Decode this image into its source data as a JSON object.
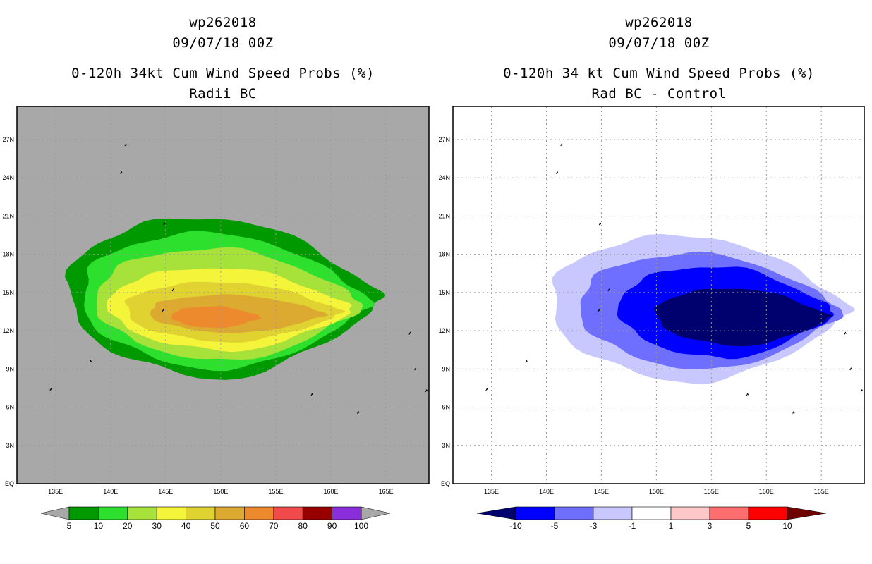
{
  "figure": {
    "storm_id": "wp262018",
    "datetime": "09/07/18 00Z"
  },
  "chart_data": [
    {
      "type": "filled-contour-map",
      "title_lines": [
        "wp262018",
        "09/07/18 00Z",
        "0-120h 34kt Cum Wind Speed Probs (%)",
        "Radii BC"
      ],
      "background": "#a8a8a8",
      "x_ticks": [
        "135E",
        "140E",
        "145E",
        "150E",
        "155E",
        "160E",
        "165E"
      ],
      "x_tick_values": [
        135,
        140,
        145,
        150,
        155,
        160,
        165
      ],
      "y_ticks": [
        "EQ",
        "3N",
        "6N",
        "9N",
        "12N",
        "15N",
        "18N",
        "21N",
        "24N",
        "27N"
      ],
      "y_tick_values": [
        0,
        3,
        6,
        9,
        12,
        15,
        18,
        21,
        24,
        27
      ],
      "xlim": [
        131.5,
        168.9
      ],
      "ylim": [
        0,
        29.6
      ],
      "grid": true,
      "colorbar": {
        "levels": [
          "5",
          "10",
          "20",
          "30",
          "40",
          "50",
          "60",
          "70",
          "80",
          "90",
          "100"
        ],
        "colors": [
          "#009a00",
          "#2ee02e",
          "#a6e23a",
          "#f4f43a",
          "#e0d230",
          "#dcaa30",
          "#ee8a2e",
          "#f04a4a",
          "#980000",
          "#8a2edc"
        ],
        "under_color": "#a8a8a8",
        "over_color": "#a8a8a8"
      },
      "contours": [
        {
          "level": "5",
          "color": "#009a00",
          "lon_range": [
            136.2,
            164.6
          ],
          "lat_range": [
            8.2,
            20.8
          ]
        },
        {
          "level": "10",
          "color": "#2ee02e",
          "lon_range": [
            137.5,
            163.6
          ],
          "lat_range": [
            8.9,
            19.6
          ]
        },
        {
          "level": "20",
          "color": "#a6e23a",
          "lon_range": [
            138.8,
            162.9
          ],
          "lat_range": [
            9.6,
            18.4
          ]
        },
        {
          "level": "30",
          "color": "#f4f43a",
          "lon_range": [
            140.0,
            162.0
          ],
          "lat_range": [
            10.4,
            16.9
          ]
        },
        {
          "level": "40",
          "color": "#e0d230",
          "lon_range": [
            141.4,
            161.0
          ],
          "lat_range": [
            11.1,
            15.8
          ]
        },
        {
          "level": "50",
          "color": "#dcaa30",
          "lon_range": [
            143.6,
            159.6
          ],
          "lat_range": [
            11.8,
            14.8
          ]
        },
        {
          "level": "60",
          "color": "#ee8a2e",
          "lon_range": [
            145.6,
            153.7
          ],
          "lat_range": [
            12.2,
            13.9
          ]
        }
      ]
    },
    {
      "type": "filled-contour-map",
      "title_lines": [
        "wp262018",
        "09/07/18 00Z",
        "0-120h 34 kt Cum Wind Speed Probs (%)",
        "Rad BC - Control"
      ],
      "background": "#ffffff",
      "x_ticks": [
        "135E",
        "140E",
        "145E",
        "150E",
        "155E",
        "160E",
        "165E"
      ],
      "x_tick_values": [
        135,
        140,
        145,
        150,
        155,
        160,
        165
      ],
      "y_ticks": [
        "EQ",
        "3N",
        "6N",
        "9N",
        "12N",
        "15N",
        "18N",
        "21N",
        "24N",
        "27N"
      ],
      "y_tick_values": [
        0,
        3,
        6,
        9,
        12,
        15,
        18,
        21,
        24,
        27
      ],
      "xlim": [
        131.5,
        168.9
      ],
      "ylim": [
        0,
        29.6
      ],
      "grid": true,
      "colorbar": {
        "levels": [
          "-10",
          "-5",
          "-3",
          "-1",
          "1",
          "3",
          "5",
          "10"
        ],
        "colors": [
          "#0000ff",
          "#6e6eff",
          "#c8c8ff",
          "#ffffff",
          "#ffc8c8",
          "#ff6e6e",
          "#ff0000"
        ],
        "under_color": "#00006e",
        "over_color": "#6e0000"
      },
      "contours": [
        {
          "level": "-1",
          "color": "#c8c8ff",
          "lon_range": [
            140.5,
            167.6
          ],
          "lat_range": [
            7.9,
            19.4
          ]
        },
        {
          "level": "-3",
          "color": "#6e6eff",
          "lon_range": [
            143.1,
            166.9
          ],
          "lat_range": [
            8.9,
            18.0
          ]
        },
        {
          "level": "-5",
          "color": "#0000ff",
          "lon_range": [
            146.7,
            166.2
          ],
          "lat_range": [
            9.8,
            17.0
          ]
        },
        {
          "level": "-10",
          "color": "#00006e",
          "lon_range": [
            150.0,
            165.8
          ],
          "lat_range": [
            10.8,
            15.3
          ]
        }
      ]
    }
  ]
}
